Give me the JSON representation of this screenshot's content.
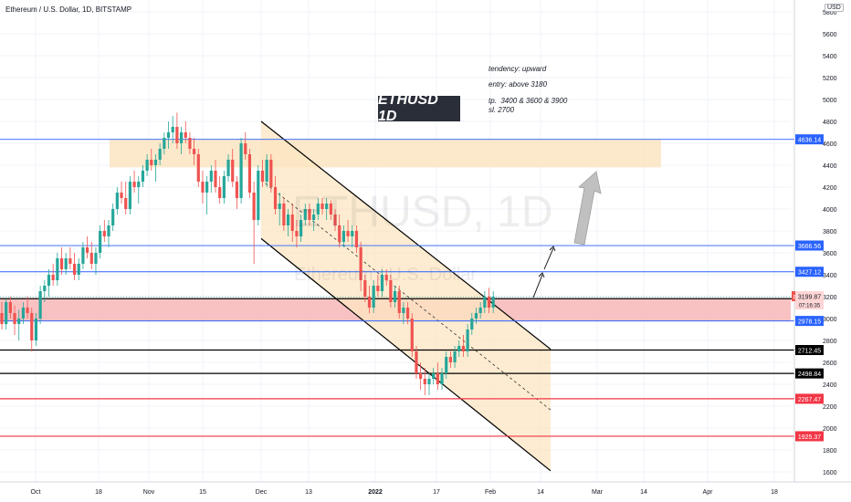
{
  "header": {
    "symbol_line": "Ethereum / U.S. Dollar, 1D, BITSTAMP",
    "currency": "USD"
  },
  "watermark": {
    "symbol": "ETHUSD, 1D",
    "name": "Ethereum / U.S. Dollar"
  },
  "badge": "ETHUSD 1D",
  "annotations": {
    "tendency": "tendency: upward",
    "entry": "entry: above 3180",
    "tp": "tp.  3400 & 3600 & 3900",
    "sl": "sl. 2700"
  },
  "colors": {
    "up": "#26a69a",
    "down": "#ef5350",
    "zone_orange": "#fce5c2",
    "zone_red": "#f7a8a8",
    "blue_line": "#2962ff",
    "red_line": "#f23645",
    "black_line": "#000000"
  },
  "chart_data": {
    "type": "candlestick",
    "y_axis": {
      "range": [
        1500,
        6000
      ],
      "ticks": [
        1600,
        1800,
        2000,
        2200,
        2400,
        2600,
        2800,
        3000,
        3200,
        3400,
        3600,
        3800,
        4000,
        4200,
        4400,
        4600,
        4800,
        5000,
        5200,
        5400,
        5600,
        5800
      ]
    },
    "x_axis": {
      "ticks": [
        "Oct",
        "18",
        "Nov",
        "15",
        "Dec",
        "13",
        "2022",
        "17",
        "Feb",
        "14",
        "Mar",
        "14",
        "Apr",
        "18"
      ]
    },
    "price_label": {
      "symbol": "ETHUSD",
      "price": "3199.87",
      "countdown": "07:16:35"
    },
    "levels": [
      {
        "price": 4636.14,
        "label": "4636.14",
        "color": "blue"
      },
      {
        "price": 3666.56,
        "label": "3666.56",
        "color": "blue"
      },
      {
        "price": 3427.12,
        "label": "3427.12",
        "color": "blue"
      },
      {
        "price": 3181.18,
        "label": "3181.18",
        "color": "black"
      },
      {
        "price": 2978.15,
        "label": "2978.15",
        "color": "blue"
      },
      {
        "price": 2712.45,
        "label": "2712.45",
        "color": "black"
      },
      {
        "price": 2498.84,
        "label": "2498.84",
        "color": "black"
      },
      {
        "price": 2267.47,
        "label": "2267.47",
        "color": "red"
      },
      {
        "price": 1925.37,
        "label": "1925.37",
        "color": "red"
      }
    ],
    "zones": [
      {
        "name": "resistance",
        "from": 4380,
        "to": 4640
      },
      {
        "name": "entry",
        "from": 2978,
        "to": 3181
      }
    ],
    "channel": {
      "upper": [
        [
          4800,
          2720
        ]
      ],
      "lower": [
        [
          3730,
          1610
        ]
      ]
    },
    "ohlc": [
      [
        3050,
        3150,
        2900,
        2950
      ],
      [
        2950,
        3180,
        2900,
        3150
      ],
      [
        3150,
        3200,
        3000,
        3050
      ],
      [
        3050,
        3120,
        2850,
        2950
      ],
      [
        2950,
        3080,
        2800,
        3000
      ],
      [
        3000,
        3150,
        2950,
        3100
      ],
      [
        3100,
        3200,
        3000,
        3050
      ],
      [
        3050,
        3100,
        2700,
        2800
      ],
      [
        2800,
        3050,
        2750,
        3000
      ],
      [
        3000,
        3300,
        2950,
        3250
      ],
      [
        3250,
        3350,
        3150,
        3300
      ],
      [
        3300,
        3450,
        3200,
        3400
      ],
      [
        3400,
        3500,
        3300,
        3350
      ],
      [
        3350,
        3600,
        3300,
        3550
      ],
      [
        3550,
        3650,
        3400,
        3450
      ],
      [
        3450,
        3600,
        3400,
        3550
      ],
      [
        3550,
        3650,
        3450,
        3500
      ],
      [
        3500,
        3600,
        3350,
        3400
      ],
      [
        3400,
        3550,
        3350,
        3500
      ],
      [
        3500,
        3700,
        3450,
        3650
      ],
      [
        3650,
        3750,
        3550,
        3600
      ],
      [
        3600,
        3700,
        3450,
        3500
      ],
      [
        3500,
        3650,
        3400,
        3600
      ],
      [
        3600,
        3850,
        3550,
        3800
      ],
      [
        3800,
        3900,
        3700,
        3750
      ],
      [
        3750,
        3900,
        3650,
        3850
      ],
      [
        3850,
        4050,
        3800,
        4000
      ],
      [
        4000,
        4200,
        3950,
        4150
      ],
      [
        4150,
        4250,
        4050,
        4100
      ],
      [
        4100,
        4250,
        3950,
        4000
      ],
      [
        4000,
        4300,
        3950,
        4250
      ],
      [
        4250,
        4350,
        4150,
        4200
      ],
      [
        4200,
        4300,
        4050,
        4250
      ],
      [
        4250,
        4400,
        4200,
        4350
      ],
      [
        4350,
        4500,
        4300,
        4450
      ],
      [
        4450,
        4550,
        4350,
        4400
      ],
      [
        4400,
        4500,
        4250,
        4450
      ],
      [
        4450,
        4600,
        4400,
        4550
      ],
      [
        4550,
        4700,
        4500,
        4650
      ],
      [
        4650,
        4800,
        4550,
        4700
      ],
      [
        4700,
        4850,
        4600,
        4750
      ],
      [
        4750,
        4880,
        4550,
        4600
      ],
      [
        4600,
        4750,
        4500,
        4700
      ],
      [
        4700,
        4800,
        4600,
        4650
      ],
      [
        4650,
        4700,
        4500,
        4550
      ],
      [
        4550,
        4650,
        4400,
        4500
      ],
      [
        4500,
        4550,
        4200,
        4250
      ],
      [
        4250,
        4350,
        4050,
        4150
      ],
      [
        4150,
        4300,
        3950,
        4250
      ],
      [
        4250,
        4400,
        4150,
        4350
      ],
      [
        4350,
        4450,
        4150,
        4200
      ],
      [
        4200,
        4300,
        4050,
        4100
      ],
      [
        4100,
        4350,
        4050,
        4300
      ],
      [
        4300,
        4500,
        4250,
        4450
      ],
      [
        4450,
        4550,
        4200,
        4250
      ],
      [
        4250,
        4300,
        4000,
        4100
      ],
      [
        4100,
        4650,
        4050,
        4600
      ],
      [
        4600,
        4700,
        4450,
        4500
      ],
      [
        4500,
        4550,
        4100,
        4150
      ],
      [
        4150,
        4250,
        3500,
        3900
      ],
      [
        3900,
        4400,
        3850,
        4350
      ],
      [
        4350,
        4450,
        4200,
        4250
      ],
      [
        4250,
        4500,
        4200,
        4450
      ],
      [
        4450,
        4500,
        4150,
        4200
      ],
      [
        4200,
        4300,
        3950,
        4000
      ],
      [
        4000,
        4150,
        3850,
        4050
      ],
      [
        4050,
        4100,
        3800,
        3850
      ],
      [
        3850,
        4000,
        3750,
        3950
      ],
      [
        3950,
        4050,
        3700,
        3800
      ],
      [
        3800,
        3900,
        3650,
        3750
      ],
      [
        3750,
        3950,
        3700,
        3900
      ],
      [
        3900,
        4050,
        3850,
        4000
      ],
      [
        4000,
        4050,
        3850,
        3900
      ],
      [
        3900,
        4000,
        3800,
        3950
      ],
      [
        3950,
        4100,
        3900,
        4050
      ],
      [
        4050,
        4100,
        3950,
        4000
      ],
      [
        4000,
        4100,
        3900,
        4050
      ],
      [
        4050,
        4080,
        3900,
        3950
      ],
      [
        3950,
        4000,
        3800,
        3850
      ],
      [
        3850,
        3950,
        3650,
        3700
      ],
      [
        3700,
        3850,
        3650,
        3800
      ],
      [
        3800,
        3900,
        3700,
        3750
      ],
      [
        3750,
        3850,
        3650,
        3800
      ],
      [
        3800,
        3850,
        3600,
        3650
      ],
      [
        3650,
        3700,
        3250,
        3350
      ],
      [
        3350,
        3400,
        3150,
        3200
      ],
      [
        3200,
        3300,
        3050,
        3100
      ],
      [
        3100,
        3350,
        3050,
        3300
      ],
      [
        3300,
        3400,
        3200,
        3250
      ],
      [
        3250,
        3450,
        3200,
        3400
      ],
      [
        3400,
        3450,
        3300,
        3350
      ],
      [
        3350,
        3400,
        3100,
        3150
      ],
      [
        3150,
        3300,
        3100,
        3250
      ],
      [
        3250,
        3300,
        3000,
        3050
      ],
      [
        3050,
        3150,
        2950,
        3100
      ],
      [
        3100,
        3150,
        2950,
        3000
      ],
      [
        3000,
        3050,
        2650,
        2700
      ],
      [
        2700,
        2750,
        2450,
        2500
      ],
      [
        2500,
        2600,
        2350,
        2450
      ],
      [
        2450,
        2550,
        2300,
        2400
      ],
      [
        2400,
        2500,
        2300,
        2450
      ],
      [
        2450,
        2550,
        2400,
        2500
      ],
      [
        2500,
        2600,
        2350,
        2400
      ],
      [
        2400,
        2550,
        2350,
        2500
      ],
      [
        2500,
        2700,
        2450,
        2650
      ],
      [
        2650,
        2700,
        2550,
        2600
      ],
      [
        2600,
        2750,
        2550,
        2700
      ],
      [
        2700,
        2800,
        2650,
        2750
      ],
      [
        2750,
        2850,
        2650,
        2700
      ],
      [
        2700,
        2950,
        2650,
        2900
      ],
      [
        2900,
        3050,
        2850,
        3000
      ],
      [
        3000,
        3100,
        2950,
        3050
      ],
      [
        3050,
        3150,
        3000,
        3100
      ],
      [
        3100,
        3250,
        3050,
        3200
      ],
      [
        3200,
        3280,
        3050,
        3100
      ],
      [
        3100,
        3250,
        3050,
        3200
      ]
    ]
  }
}
